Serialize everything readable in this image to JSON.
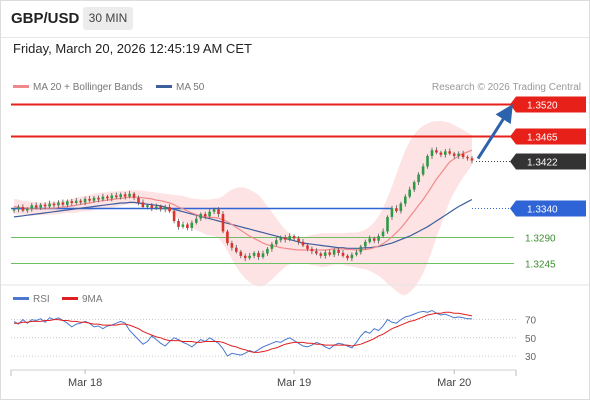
{
  "header": {
    "symbol": "GBP/USD",
    "timeframe": "30 MIN",
    "timestamp": "Friday, March 20, 2026 12:45:19 AM CET"
  },
  "legend": {
    "ma20": "MA 20 + Bollinger Bands",
    "ma50": "MA 50",
    "rsi": "RSI",
    "rsi_ma": "9MA",
    "credit": "Research © 2026 Trading Central"
  },
  "colors": {
    "red_level": "#e8201a",
    "blue_level": "#2f64d6",
    "green_level": "#6cbf62",
    "bull_candle": "#2e9a45",
    "bear_candle": "#d9332c",
    "ma20": "#f08a8a",
    "ma50": "#3d5f9e",
    "bollinger_fill": "#fcdcdc",
    "arrow": "#2d63ad",
    "rsi": "#4a78d0",
    "rsi_ma": "#e02020",
    "current_price_badge": "#333333"
  },
  "chart_data": [
    {
      "type": "candlestick",
      "ylim": [
        1.3225,
        1.3535
      ],
      "x_ticks": [
        "Mar 18",
        "Mar 19",
        "Mar 20"
      ],
      "levels": [
        {
          "value": 1.352,
          "label": "1.3520",
          "kind": "resistance"
        },
        {
          "value": 1.3465,
          "label": "1.3465",
          "kind": "resistance"
        },
        {
          "value": 1.3422,
          "label": "1.3422",
          "kind": "current"
        },
        {
          "value": 1.334,
          "label": "1.3340",
          "kind": "pivot"
        },
        {
          "value": 1.329,
          "label": "1.3290",
          "kind": "support"
        },
        {
          "value": 1.3245,
          "label": "1.3245",
          "kind": "support"
        }
      ],
      "close": [
        1.3338,
        1.3342,
        1.3336,
        1.3339,
        1.3345,
        1.3341,
        1.3346,
        1.3343,
        1.3348,
        1.3345,
        1.335,
        1.3346,
        1.3352,
        1.3349,
        1.3353,
        1.335,
        1.3356,
        1.3353,
        1.3358,
        1.3355,
        1.336,
        1.3357,
        1.3362,
        1.3359,
        1.3364,
        1.336,
        1.3365,
        1.3358,
        1.335,
        1.3342,
        1.3345,
        1.334,
        1.3343,
        1.3338,
        1.3342,
        1.3335,
        1.3318,
        1.3308,
        1.3312,
        1.3306,
        1.3315,
        1.3322,
        1.333,
        1.3326,
        1.3334,
        1.3338,
        1.333,
        1.33,
        1.328,
        1.3272,
        1.3265,
        1.3258,
        1.3254,
        1.3258,
        1.3263,
        1.3256,
        1.3262,
        1.327,
        1.3278,
        1.3285,
        1.329,
        1.3286,
        1.3292,
        1.3288,
        1.3282,
        1.3276,
        1.327,
        1.3266,
        1.3262,
        1.3258,
        1.3264,
        1.326,
        1.3268,
        1.3263,
        1.3258,
        1.3254,
        1.326,
        1.3264,
        1.3274,
        1.3282,
        1.3288,
        1.3284,
        1.3292,
        1.33,
        1.3325,
        1.334,
        1.3335,
        1.3348,
        1.336,
        1.3372,
        1.3385,
        1.3398,
        1.3412,
        1.343,
        1.344,
        1.3436,
        1.3432,
        1.3438,
        1.3434,
        1.343,
        1.3434,
        1.3428,
        1.3426,
        1.3422
      ],
      "ma20": [
        1.3343,
        1.3342,
        1.3341,
        1.334,
        1.3339,
        1.3339,
        1.3339,
        1.3339,
        1.334,
        1.334,
        1.3341,
        1.3342,
        1.3343,
        1.3344,
        1.3345,
        1.3347,
        1.3348,
        1.3349,
        1.3351,
        1.3352,
        1.3353,
        1.3354,
        1.3355,
        1.3356,
        1.3357,
        1.3358,
        1.3359,
        1.3359,
        1.3359,
        1.3358,
        1.3357,
        1.3356,
        1.3354,
        1.3353,
        1.3351,
        1.3349,
        1.3346,
        1.3342,
        1.3339,
        1.3335,
        1.3332,
        1.3329,
        1.3327,
        1.3325,
        1.3324,
        1.3324,
        1.3323,
        1.332,
        1.3317,
        1.3312,
        1.3307,
        1.3302,
        1.3297,
        1.3292,
        1.3288,
        1.3284,
        1.328,
        1.3277,
        1.3275,
        1.3274,
        1.3272,
        1.3271,
        1.327,
        1.3269,
        1.3268,
        1.3268,
        1.3268,
        1.3268,
        1.3268,
        1.3268,
        1.3268,
        1.3269,
        1.327,
        1.327,
        1.327,
        1.3269,
        1.3269,
        1.3268,
        1.3268,
        1.3269,
        1.327,
        1.3272,
        1.3275,
        1.3279,
        1.3284,
        1.3291,
        1.3298,
        1.3306,
        1.3315,
        1.3325,
        1.3335,
        1.3345,
        1.3355,
        1.3366,
        1.3378,
        1.339,
        1.34,
        1.341,
        1.342,
        1.3425,
        1.343,
        1.3434,
        1.3437,
        1.344
      ],
      "bb_upper": [
        1.3356,
        1.3355,
        1.3353,
        1.3352,
        1.3351,
        1.335,
        1.335,
        1.335,
        1.3351,
        1.3351,
        1.3352,
        1.3353,
        1.3354,
        1.3356,
        1.3358,
        1.336,
        1.3361,
        1.3363,
        1.3365,
        1.3366,
        1.3367,
        1.3368,
        1.3369,
        1.3369,
        1.337,
        1.337,
        1.3371,
        1.3371,
        1.3371,
        1.337,
        1.3369,
        1.3368,
        1.3367,
        1.3366,
        1.3365,
        1.3364,
        1.3363,
        1.3362,
        1.3361,
        1.3359,
        1.3357,
        1.3356,
        1.3355,
        1.3355,
        1.3355,
        1.3356,
        1.3357,
        1.3361,
        1.3367,
        1.3372,
        1.3375,
        1.3376,
        1.3375,
        1.3372,
        1.3368,
        1.3363,
        1.3354,
        1.3343,
        1.3333,
        1.3323,
        1.3312,
        1.3303,
        1.3296,
        1.3292,
        1.3291,
        1.329,
        1.3292,
        1.3294,
        1.3295,
        1.3297,
        1.3297,
        1.3297,
        1.3297,
        1.3297,
        1.3297,
        1.3298,
        1.3298,
        1.3298,
        1.33,
        1.3303,
        1.3308,
        1.3316,
        1.3326,
        1.334,
        1.3358,
        1.3378,
        1.3399,
        1.342,
        1.344,
        1.3455,
        1.3467,
        1.3476,
        1.3482,
        1.3486,
        1.3489,
        1.349,
        1.349,
        1.3489,
        1.3487,
        1.3483,
        1.3479,
        1.3475,
        1.347,
        1.3466
      ],
      "bb_lower": [
        1.333,
        1.3329,
        1.3329,
        1.3328,
        1.3327,
        1.3328,
        1.3328,
        1.3328,
        1.3329,
        1.3329,
        1.333,
        1.3331,
        1.3332,
        1.3332,
        1.3332,
        1.3334,
        1.3335,
        1.3335,
        1.3337,
        1.3338,
        1.3339,
        1.334,
        1.3341,
        1.3343,
        1.3344,
        1.3346,
        1.3347,
        1.3347,
        1.3347,
        1.3346,
        1.3345,
        1.3344,
        1.3341,
        1.334,
        1.3337,
        1.3334,
        1.3329,
        1.3322,
        1.3317,
        1.3311,
        1.3307,
        1.3302,
        1.3299,
        1.3295,
        1.3293,
        1.3292,
        1.3289,
        1.3279,
        1.3267,
        1.3252,
        1.3239,
        1.3228,
        1.3219,
        1.3212,
        1.3208,
        1.3205,
        1.3206,
        1.3211,
        1.3217,
        1.3225,
        1.3232,
        1.3239,
        1.3244,
        1.3246,
        1.3245,
        1.3246,
        1.3244,
        1.3242,
        1.3241,
        1.3239,
        1.3239,
        1.3241,
        1.3243,
        1.3243,
        1.3243,
        1.324,
        1.324,
        1.3238,
        1.3236,
        1.3235,
        1.3232,
        1.3228,
        1.3224,
        1.3218,
        1.321,
        1.3204,
        1.3197,
        1.3192,
        1.319,
        1.3195,
        1.3203,
        1.3214,
        1.3228,
        1.3246,
        1.3267,
        1.329,
        1.331,
        1.3331,
        1.3353,
        1.3367,
        1.3381,
        1.3393,
        1.3404,
        1.3414
      ],
      "ma50": [
        1.3325,
        1.3326,
        1.3327,
        1.3328,
        1.3329,
        1.333,
        1.3331,
        1.3332,
        1.3333,
        1.3334,
        1.3335,
        1.3336,
        1.3337,
        1.3338,
        1.3339,
        1.334,
        1.3341,
        1.3342,
        1.3343,
        1.3344,
        1.3345,
        1.3346,
        1.3347,
        1.3348,
        1.3349,
        1.3349,
        1.335,
        1.335,
        1.3349,
        1.3348,
        1.3347,
        1.3346,
        1.3345,
        1.3344,
        1.3342,
        1.334,
        1.3338,
        1.3336,
        1.3334,
        1.3332,
        1.333,
        1.3328,
        1.3326,
        1.3324,
        1.3322,
        1.332,
        1.3318,
        1.3316,
        1.3314,
        1.3312,
        1.331,
        1.3308,
        1.3306,
        1.3304,
        1.3302,
        1.33,
        1.3298,
        1.3296,
        1.3294,
        1.3292,
        1.329,
        1.3288,
        1.3286,
        1.3284,
        1.3282,
        1.328,
        1.3279,
        1.3278,
        1.3277,
        1.3276,
        1.3275,
        1.3274,
        1.3273,
        1.3272,
        1.3272,
        1.3271,
        1.3271,
        1.3271,
        1.3271,
        1.3272,
        1.3272,
        1.3273,
        1.3274,
        1.3276,
        1.3278,
        1.328,
        1.3283,
        1.3286,
        1.3289,
        1.3292,
        1.3296,
        1.33,
        1.3304,
        1.3308,
        1.3313,
        1.3318,
        1.3323,
        1.3328,
        1.3333,
        1.3338,
        1.3343,
        1.3347,
        1.3351,
        1.3355
      ]
    },
    {
      "type": "line",
      "ylim": [
        18,
        86
      ],
      "y_ticks": [
        30,
        50,
        70
      ],
      "series": [
        {
          "name": "RSI",
          "values": [
            68,
            65,
            70,
            66,
            70,
            69,
            71,
            67,
            72,
            70,
            72,
            69,
            66,
            62,
            65,
            66,
            68,
            66,
            62,
            63,
            60,
            63,
            64,
            66,
            68,
            66,
            58,
            53,
            48,
            43,
            46,
            52,
            48,
            44,
            41,
            46,
            50,
            48,
            45,
            43,
            40,
            44,
            48,
            46,
            50,
            47,
            44,
            38,
            30,
            33,
            32,
            31,
            33,
            36,
            34,
            37,
            40,
            42,
            44,
            46,
            45,
            48,
            50,
            47,
            44,
            41,
            40,
            42,
            45,
            43,
            40,
            38,
            42,
            44,
            43,
            41,
            39,
            45,
            52,
            57,
            55,
            60,
            58,
            63,
            70,
            67,
            66,
            70,
            73,
            74,
            76,
            78,
            79,
            78,
            80,
            77,
            75,
            76,
            74,
            72,
            73,
            72,
            71,
            71
          ]
        },
        {
          "name": "9MA",
          "values": [
            66,
            66,
            67,
            67,
            68,
            68,
            68,
            69,
            69,
            70,
            70,
            69,
            69,
            68,
            68,
            67,
            67,
            66,
            65,
            65,
            64,
            64,
            64,
            64,
            65,
            65,
            64,
            62,
            60,
            57,
            55,
            53,
            51,
            50,
            48,
            47,
            47,
            47,
            46,
            46,
            46,
            45,
            45,
            46,
            46,
            46,
            46,
            45,
            43,
            41,
            40,
            38,
            37,
            35,
            34,
            34,
            35,
            36,
            38,
            39,
            41,
            43,
            44,
            45,
            45,
            45,
            44,
            44,
            43,
            43,
            42,
            42,
            42,
            42,
            42,
            42,
            41,
            42,
            43,
            45,
            47,
            49,
            52,
            54,
            57,
            60,
            62,
            64,
            66,
            68,
            69,
            71,
            73,
            75,
            76,
            77,
            77,
            78,
            78,
            77,
            77,
            76,
            75,
            74
          ]
        }
      ]
    }
  ]
}
